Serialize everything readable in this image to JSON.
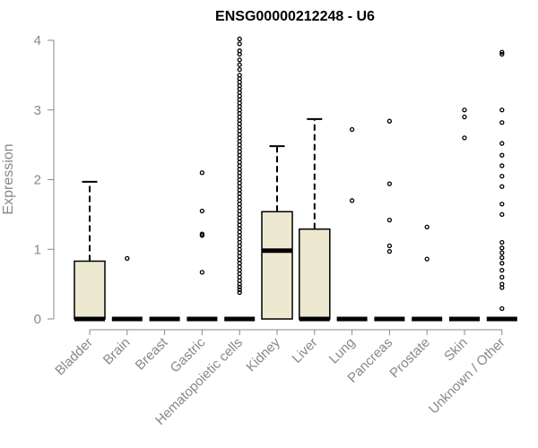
{
  "chart_data": {
    "type": "boxplot",
    "title": "ENSG00000212248 - U6",
    "xlabel": "",
    "ylabel": "Expression",
    "ylim": [
      0,
      4
    ],
    "yticks": [
      "0",
      "1",
      "2",
      "3",
      "4"
    ],
    "grid": false,
    "box_fill": "#ede8d0",
    "line_color": "#000000",
    "categories": [
      "Bladder",
      "Brain",
      "Breast",
      "Gastric",
      "Hematopoietic cells",
      "Kidney",
      "Liver",
      "Lung",
      "Pancreas",
      "Prostate",
      "Skin",
      "Unknown / Other"
    ],
    "boxes": [
      {
        "q1": 0,
        "median": 0,
        "q3": 0.83,
        "whisker_low": 0,
        "whisker_high": 1.97,
        "outliers": []
      },
      {
        "q1": 0,
        "median": 0,
        "q3": 0,
        "whisker_low": 0,
        "whisker_high": 0,
        "outliers": [
          0.87
        ]
      },
      {
        "q1": 0,
        "median": 0,
        "q3": 0,
        "whisker_low": 0,
        "whisker_high": 0,
        "outliers": []
      },
      {
        "q1": 0,
        "median": 0,
        "q3": 0,
        "whisker_low": 0,
        "whisker_high": 0,
        "outliers": [
          0.67,
          1.2,
          1.22,
          1.55,
          2.1
        ]
      },
      {
        "q1": 0,
        "median": 0,
        "q3": 0,
        "whisker_low": 0,
        "whisker_high": 0,
        "outliers": [
          0.38,
          0.42,
          0.46,
          0.5,
          0.55,
          0.6,
          0.65,
          0.7,
          0.75,
          0.8,
          0.85,
          0.9,
          0.95,
          1.0,
          1.05,
          1.1,
          1.15,
          1.2,
          1.25,
          1.3,
          1.35,
          1.4,
          1.45,
          1.5,
          1.55,
          1.6,
          1.65,
          1.7,
          1.75,
          1.8,
          1.85,
          1.9,
          1.95,
          2.0,
          2.05,
          2.1,
          2.15,
          2.2,
          2.25,
          2.3,
          2.35,
          2.4,
          2.45,
          2.5,
          2.55,
          2.6,
          2.65,
          2.7,
          2.75,
          2.8,
          2.85,
          2.9,
          2.95,
          3.0,
          3.05,
          3.1,
          3.15,
          3.2,
          3.25,
          3.3,
          3.35,
          3.4,
          3.45,
          3.5,
          3.58,
          3.65,
          3.72,
          3.8,
          3.85,
          3.95,
          4.02
        ]
      },
      {
        "q1": 0,
        "median": 0.98,
        "q3": 1.54,
        "whisker_low": 0,
        "whisker_high": 2.48,
        "outliers": []
      },
      {
        "q1": 0,
        "median": 0,
        "q3": 1.29,
        "whisker_low": 0,
        "whisker_high": 2.87,
        "outliers": []
      },
      {
        "q1": 0,
        "median": 0,
        "q3": 0,
        "whisker_low": 0,
        "whisker_high": 0,
        "outliers": [
          1.7,
          2.72
        ]
      },
      {
        "q1": 0,
        "median": 0,
        "q3": 0,
        "whisker_low": 0,
        "whisker_high": 0,
        "outliers": [
          0.97,
          1.05,
          1.42,
          1.94,
          2.84
        ]
      },
      {
        "q1": 0,
        "median": 0,
        "q3": 0,
        "whisker_low": 0,
        "whisker_high": 0,
        "outliers": [
          0.86,
          1.32
        ]
      },
      {
        "q1": 0,
        "median": 0,
        "q3": 0,
        "whisker_low": 0,
        "whisker_high": 0,
        "outliers": [
          2.6,
          2.9,
          3.0
        ]
      },
      {
        "q1": 0,
        "median": 0,
        "q3": 0,
        "whisker_low": 0,
        "whisker_high": 0,
        "outliers": [
          0.15,
          0.45,
          0.5,
          0.6,
          0.7,
          0.8,
          0.88,
          0.95,
          1.02,
          1.1,
          1.5,
          1.65,
          1.9,
          2.05,
          2.2,
          2.35,
          2.52,
          2.82,
          3.0,
          3.8,
          3.83
        ]
      }
    ]
  }
}
